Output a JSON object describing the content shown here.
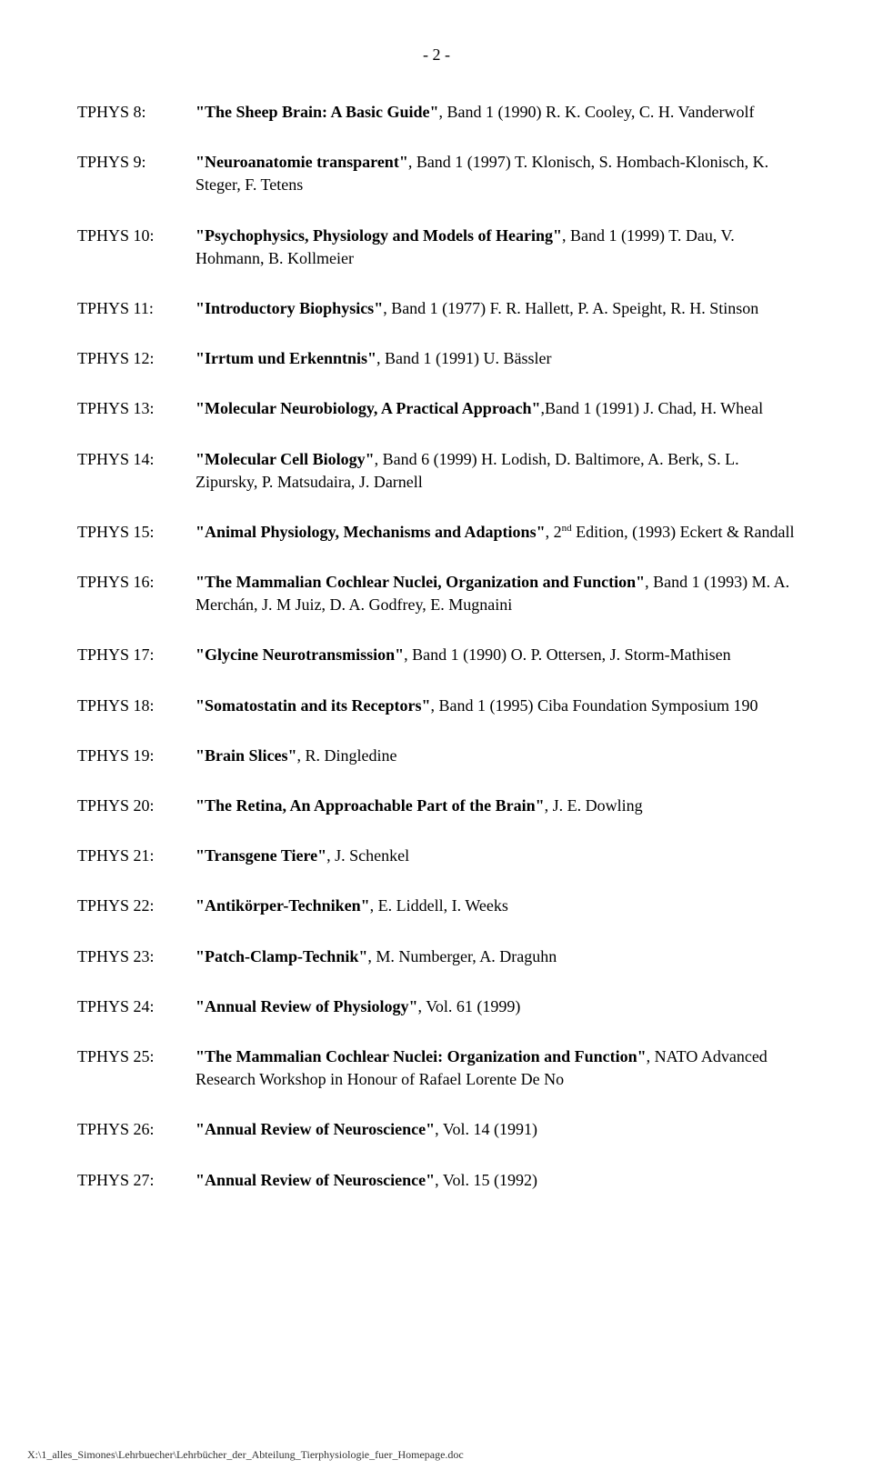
{
  "page_number": "- 2 -",
  "entries": [
    {
      "label": "TPHYS 8:",
      "title": "\"The Sheep Brain: A Basic Guide\"",
      "rest": ", Band 1 (1990) R. K. Cooley, C. H. Vanderwolf"
    },
    {
      "label": "TPHYS 9:",
      "title": "\"Neuroanatomie transparent\"",
      "rest": ", Band 1 (1997) T. Klonisch, S. Hombach-Klonisch, K. Steger, F. Tetens"
    },
    {
      "label": "TPHYS 10:",
      "title": "\"Psychophysics, Physiology and Models of Hearing\"",
      "rest": ", Band 1 (1999) T. Dau, V. Hohmann, B. Kollmeier"
    },
    {
      "label": "TPHYS 11:",
      "title": "\"Introductory Biophysics\"",
      "rest": ", Band 1 (1977) F. R. Hallett, P. A. Speight, R. H. Stinson"
    },
    {
      "label": "TPHYS 12:",
      "title": "\"Irrtum und Erkenntnis\"",
      "rest": ", Band 1 (1991) U. Bässler"
    },
    {
      "label": "TPHYS 13:",
      "title": "\"Molecular Neurobiology, A Practical Approach\"",
      "rest": ",Band 1 (1991) J. Chad, H. Wheal"
    },
    {
      "label": "TPHYS 14:",
      "title": "\"Molecular Cell Biology\"",
      "rest": ",  Band 6 (1999) H. Lodish, D. Baltimore, A. Berk, S. L. Zipursky, P. Matsudaira, J. Darnell"
    },
    {
      "label": "TPHYS 15:",
      "title": "\"Animal Physiology, Mechanisms and Adaptions\"",
      "rest_pre": ", 2",
      "sup": "nd",
      "rest_post": " Edition, (1993) Eckert & Randall"
    },
    {
      "label": "TPHYS 16:",
      "title": "\"The Mammalian Cochlear Nuclei, Organization and Function\"",
      "rest": ", Band 1 (1993) M. A. Merchán, J. M Juiz, D. A. Godfrey, E. Mugnaini"
    },
    {
      "label": "TPHYS 17:",
      "title": "\"Glycine Neurotransmission\"",
      "rest": ", Band 1 (1990) O. P. Ottersen, J. Storm-Mathisen"
    },
    {
      "label": "TPHYS 18:",
      "title": "\"Somatostatin and its Receptors\"",
      "rest": ", Band 1 (1995) Ciba Foundation Symposium 190"
    },
    {
      "label": "TPHYS 19:",
      "title": "\"Brain Slices\"",
      "rest": ", R. Dingledine"
    },
    {
      "label": "TPHYS 20:",
      "title": "\"The Retina, An Approachable Part of the Brain\"",
      "rest": ", J. E. Dowling"
    },
    {
      "label": "TPHYS 21:",
      "title": "\"Transgene Tiere\"",
      "rest": ", J. Schenkel"
    },
    {
      "label": "TPHYS 22:",
      "title": "\"Antikörper-Techniken\"",
      "rest": ", E. Liddell, I. Weeks"
    },
    {
      "label": "TPHYS 23:",
      "title": "\"Patch-Clamp-Technik\"",
      "rest": ", M. Numberger, A. Draguhn"
    },
    {
      "label": "TPHYS 24:",
      "title": "\"Annual Review of Physiology\"",
      "rest": ", Vol. 61 (1999)"
    },
    {
      "label": "TPHYS 25:",
      "title": "\"The Mammalian Cochlear Nuclei: Organization and Function\"",
      "rest": ", NATO  Advanced Research Workshop in Honour of Rafael Lorente De No"
    },
    {
      "label": "TPHYS 26:",
      "title": "\"Annual Review of Neuroscience\"",
      "rest": ", Vol. 14 (1991)"
    },
    {
      "label": "TPHYS 27:",
      "title": "\"Annual Review of Neuroscience\"",
      "rest": ", Vol. 15 (1992)"
    }
  ],
  "footer": "X:\\1_alles_Simones\\Lehrbuecher\\Lehrbücher_der_Abteilung_Tierphysiologie_fuer_Homepage.doc"
}
